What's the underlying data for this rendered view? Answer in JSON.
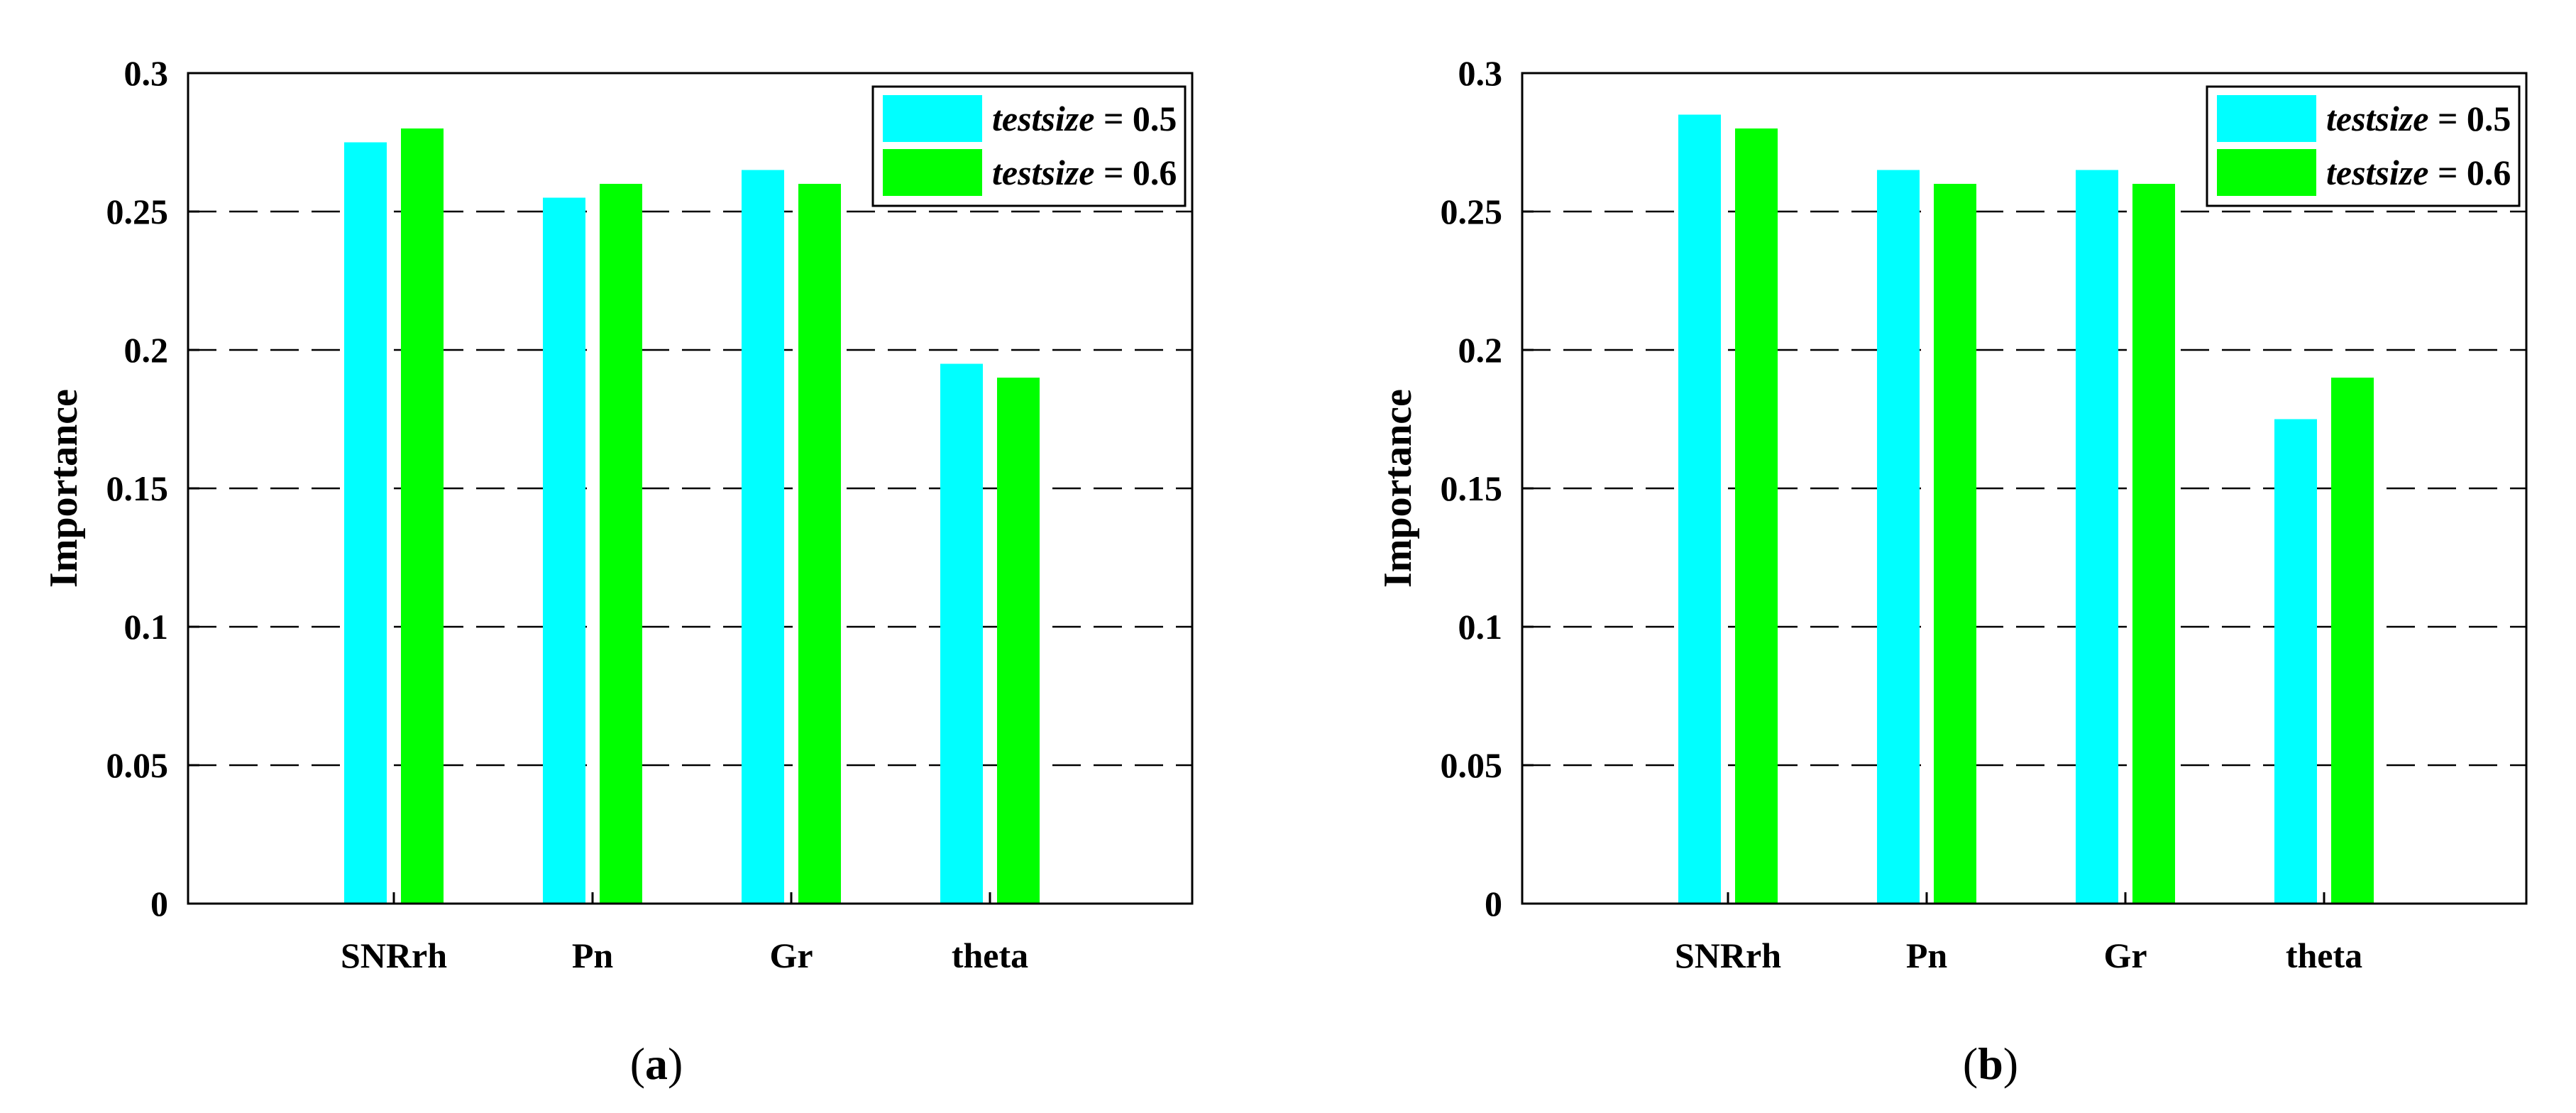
{
  "chart_data": [
    {
      "type": "bar",
      "panel_label": "a",
      "categories": [
        "SNRrh",
        "Pn",
        "Gr",
        "theta"
      ],
      "series": [
        {
          "name": "testsize",
          "value_text": "= 0.5",
          "color": "#00FFFF",
          "values": [
            0.275,
            0.255,
            0.265,
            0.195
          ]
        },
        {
          "name": "testsize",
          "value_text": "= 0.6",
          "color": "#00FF00",
          "values": [
            0.28,
            0.26,
            0.26,
            0.19
          ]
        }
      ],
      "title": "",
      "xlabel": "",
      "ylabel": "Importance",
      "ylim": [
        0,
        0.3
      ],
      "yticks": [
        "0",
        "0.05",
        "0.1",
        "0.15",
        "0.2",
        "0.25",
        "0.3"
      ],
      "grid": "dashed horizontal",
      "legend": "top-right"
    },
    {
      "type": "bar",
      "panel_label": "b",
      "categories": [
        "SNRrh",
        "Pn",
        "Gr",
        "theta"
      ],
      "series": [
        {
          "name": "testsize",
          "value_text": "= 0.5",
          "color": "#00FFFF",
          "values": [
            0.285,
            0.265,
            0.265,
            0.175
          ]
        },
        {
          "name": "testsize",
          "value_text": "= 0.6",
          "color": "#00FF00",
          "values": [
            0.28,
            0.26,
            0.26,
            0.19
          ]
        }
      ],
      "title": "",
      "xlabel": "",
      "ylabel": "Importance",
      "ylim": [
        0,
        0.3
      ],
      "yticks": [
        "0",
        "0.05",
        "0.1",
        "0.15",
        "0.2",
        "0.25",
        "0.3"
      ],
      "grid": "dashed horizontal",
      "legend": "top-right"
    }
  ]
}
